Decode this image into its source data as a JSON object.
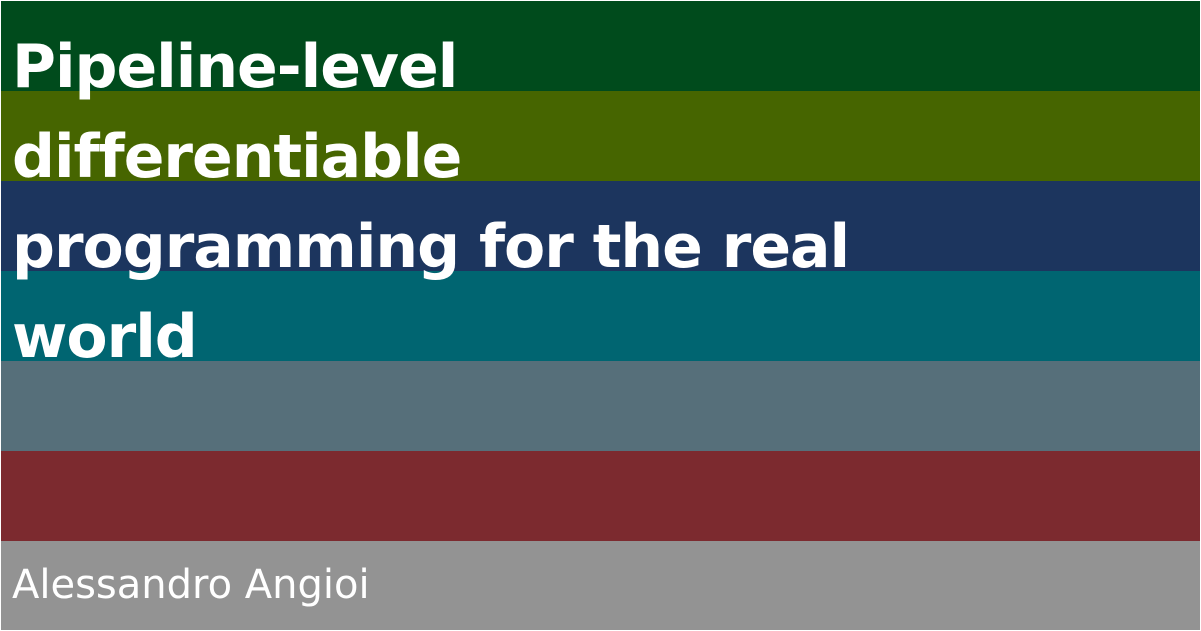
{
  "title_lines": [
    "Pipeline-level",
    "differentiable",
    "programming for the real",
    "world"
  ],
  "author": "Alessandro Angioi",
  "stripe_colors": [
    "#004b1c",
    "#466500",
    "#1c355e",
    "#006571",
    "#566f7a",
    "#7c2a2f",
    "#939393"
  ]
}
